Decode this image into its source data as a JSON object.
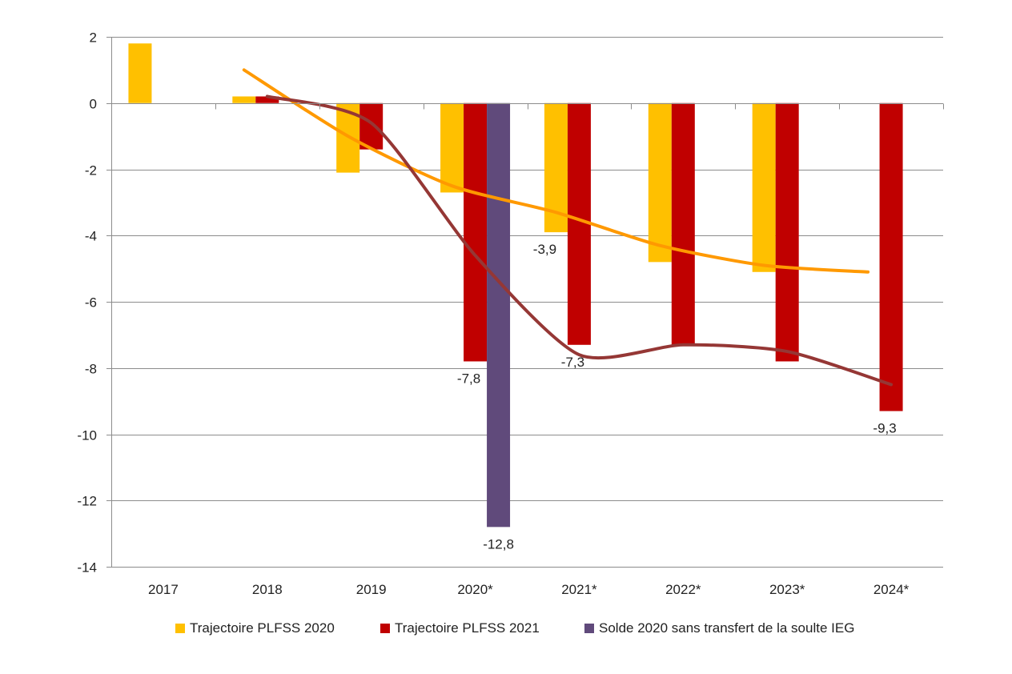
{
  "chart_data": {
    "type": "bar",
    "title": "",
    "xlabel": "",
    "ylabel": "",
    "ylim": [
      -14,
      2
    ],
    "yticks": [
      2,
      0,
      -2,
      -4,
      -6,
      -8,
      -10,
      -12,
      -14
    ],
    "ytick_labels": [
      "2",
      "0",
      "-2",
      "-4",
      "-6",
      "-8",
      "-10",
      "-12",
      "-14"
    ],
    "grid": true,
    "legend_position": "bottom",
    "categories": [
      "2017",
      "2018",
      "2019",
      "2020*",
      "2021*",
      "2022*",
      "2023*",
      "2024*"
    ],
    "series": [
      {
        "name": "Trajectoire PLFSS 2020",
        "kind": "bar",
        "color": "#FFC000",
        "values": [
          1.8,
          0.2,
          -2.1,
          -2.7,
          -3.9,
          -4.8,
          -5.1,
          null
        ]
      },
      {
        "name": "Trajectoire PLFSS 2021",
        "kind": "bar",
        "color": "#C00000",
        "values": [
          null,
          0.2,
          -1.4,
          -7.8,
          -7.3,
          -7.3,
          -7.8,
          -9.3
        ]
      },
      {
        "name": "Solde 2020 sans transfert de la soulte IEG",
        "kind": "bar",
        "color": "#604A7B",
        "values": [
          null,
          null,
          null,
          -12.8,
          null,
          null,
          null,
          null
        ]
      },
      {
        "name": "Trajectoire PLFSS 2020 (courbe)",
        "kind": "line",
        "color": "#FF9900",
        "anchor_series": 0,
        "in_legend": false,
        "values": [
          null,
          1.0,
          -1.0,
          -2.5,
          -3.3,
          -4.3,
          -4.9,
          -5.1
        ]
      },
      {
        "name": "Trajectoire PLFSS 2021 (courbe)",
        "kind": "line",
        "color": "#953735",
        "anchor_series": 1,
        "in_legend": false,
        "values": [
          null,
          0.2,
          -0.6,
          -4.6,
          -7.6,
          -7.3,
          -7.5,
          -8.5
        ]
      }
    ],
    "data_labels": [
      {
        "category": "2020*",
        "series": 1,
        "text": "-7,8"
      },
      {
        "category": "2020*",
        "series": 2,
        "text": "-12,8"
      },
      {
        "category": "2021*",
        "series": 0,
        "text": "-3,9"
      },
      {
        "category": "2021*",
        "series": 1,
        "text": "-7,3"
      },
      {
        "category": "2024*",
        "series": 1,
        "text": "-9,3"
      }
    ]
  },
  "legend": {
    "items": [
      {
        "label": "Trajectoire PLFSS 2020",
        "color": "#FFC000"
      },
      {
        "label": "Trajectoire PLFSS 2021",
        "color": "#C00000"
      },
      {
        "label": "Solde 2020 sans transfert de la soulte IEG",
        "color": "#604A7B"
      }
    ]
  }
}
